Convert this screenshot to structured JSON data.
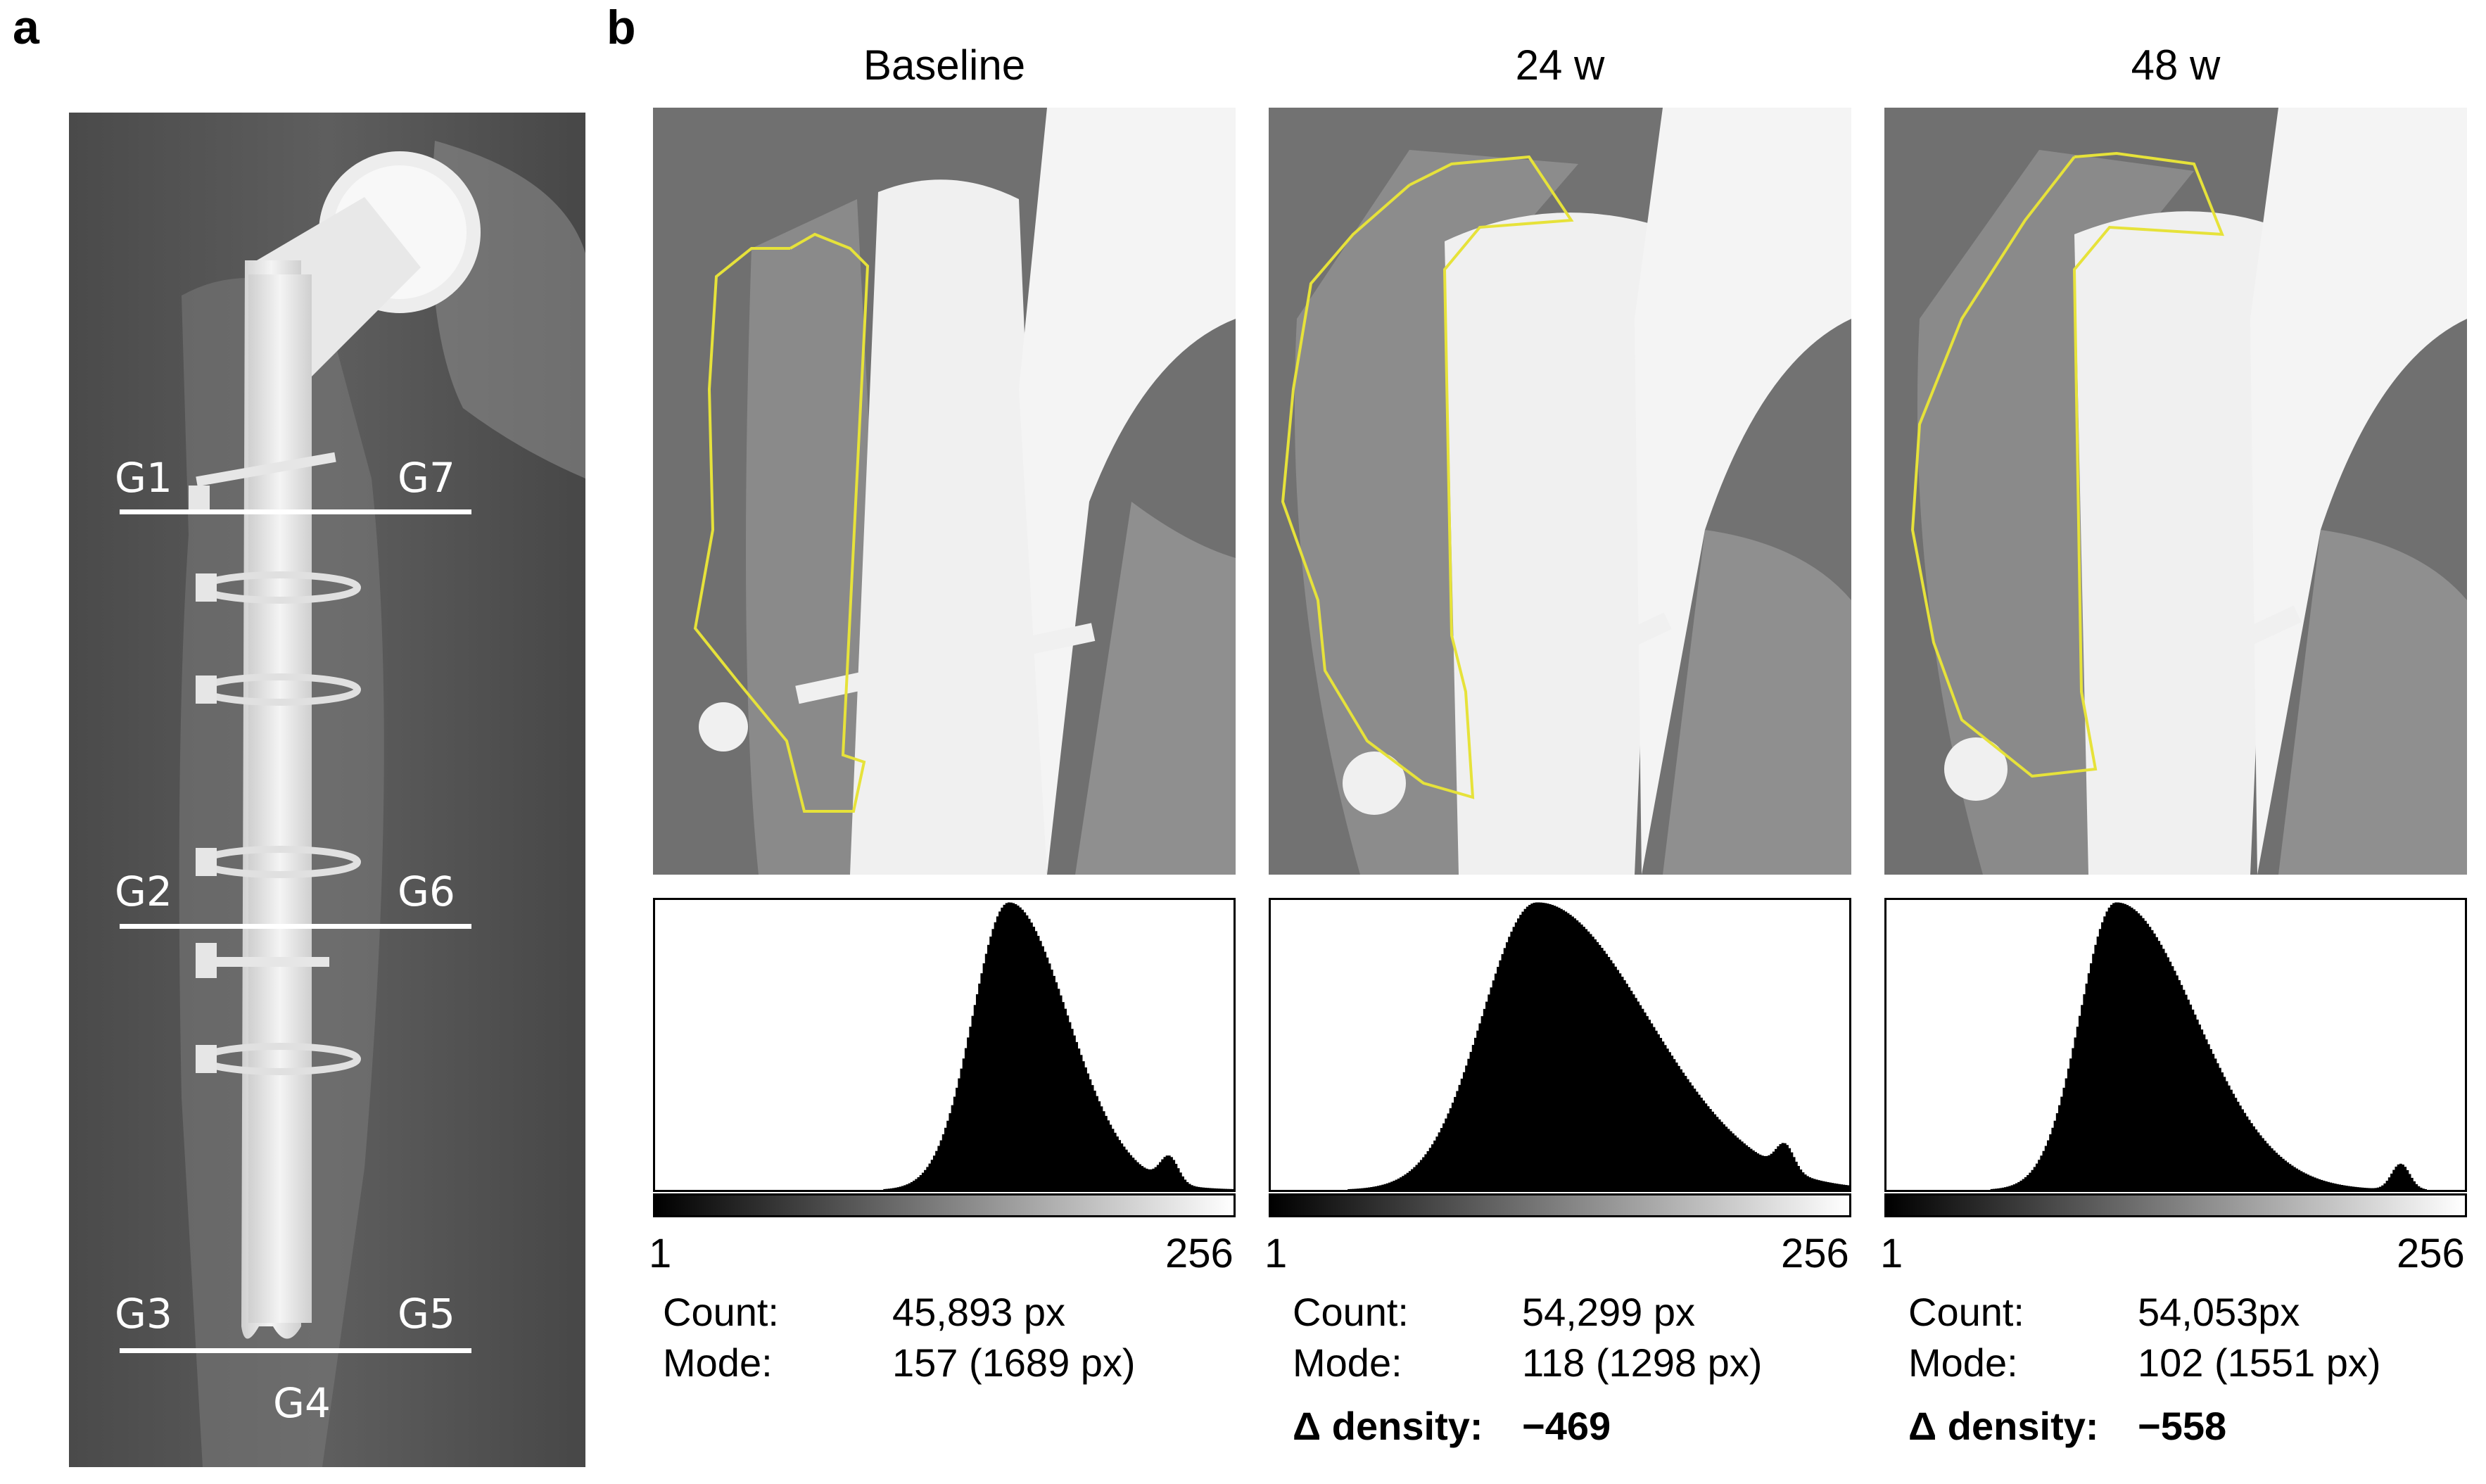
{
  "panel_a": {
    "letter": "a",
    "zone_labels": [
      "G1",
      "G7",
      "G2",
      "G6",
      "G3",
      "G5",
      "G4"
    ]
  },
  "panel_b": {
    "letter": "b",
    "columns": [
      {
        "title": "Baseline",
        "axis_min": "1",
        "axis_max": "256",
        "count_label": "Count:",
        "count_value": "45,893 px",
        "mode_label": "Mode:",
        "mode_value": "157 (1689 px)",
        "delta_label": "",
        "delta_value": "",
        "histogram_peak_grey": 157
      },
      {
        "title": "24 w",
        "axis_min": "1",
        "axis_max": "256",
        "count_label": "Count:",
        "count_value": "54,299 px",
        "mode_label": "Mode:",
        "mode_value": "118 (1298 px)",
        "delta_label": "Δ density:",
        "delta_value": "−469",
        "histogram_peak_grey": 118
      },
      {
        "title": "48 w",
        "axis_min": "1",
        "axis_max": "256",
        "count_label": "Count:",
        "count_value": "54,053px",
        "mode_label": "Mode:",
        "mode_value": "102 (1551 px)",
        "delta_label": "Δ density:",
        "delta_value": "−558",
        "histogram_peak_grey": 102
      }
    ]
  },
  "colors": {
    "roi_outline": "#e6e23a",
    "xray_background": "#6b6b6b",
    "implant": "#f2f2f2"
  }
}
